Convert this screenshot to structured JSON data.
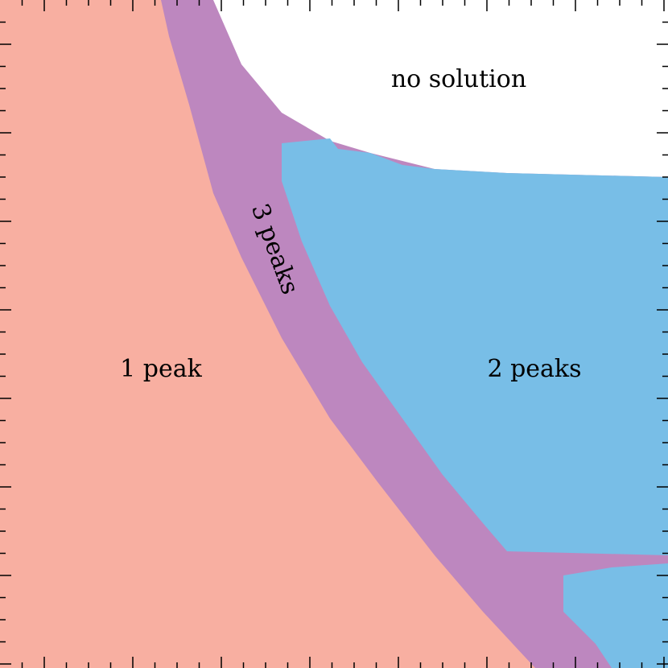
{
  "regions": {
    "no_solution": "no solution",
    "one_peak": "1 peak",
    "two_peaks": "2 peaks",
    "three_peaks": "3 peaks"
  }
}
